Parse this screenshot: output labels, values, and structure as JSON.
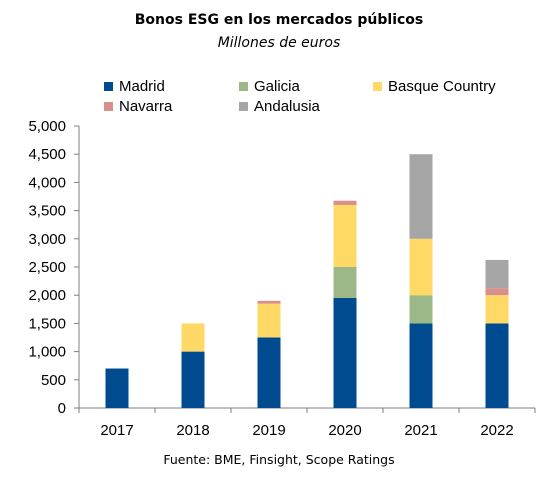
{
  "chart_data": {
    "type": "bar",
    "stacked": true,
    "title": "Bonos ESG en los mercados públicos",
    "subtitle": "Millones de euros",
    "source": "Fuente: BME, Finsight, Scope Ratings",
    "categories": [
      "2017",
      "2018",
      "2019",
      "2020",
      "2021",
      "2022"
    ],
    "ylim": [
      0,
      5000
    ],
    "yticks": [
      "0",
      "500",
      "1,000",
      "1,500",
      "2,000",
      "2,500",
      "3,000",
      "3,500",
      "4,000",
      "4,500",
      "5,000"
    ],
    "ytick_values": [
      0,
      500,
      1000,
      1500,
      2000,
      2500,
      3000,
      3500,
      4000,
      4500,
      5000
    ],
    "grid": false,
    "legend_position": "top",
    "series": [
      {
        "name": "Madrid",
        "color": "#004a8f",
        "values": [
          700,
          1000,
          1250,
          1950,
          1500,
          1500
        ]
      },
      {
        "name": "Galicia",
        "color": "#9cb889",
        "values": [
          0,
          0,
          0,
          550,
          500,
          0
        ]
      },
      {
        "name": "Basque Country",
        "color": "#ffd966",
        "values": [
          0,
          500,
          600,
          1100,
          1000,
          500
        ]
      },
      {
        "name": "Navarra",
        "color": "#d9908a",
        "values": [
          0,
          0,
          50,
          75,
          0,
          125
        ]
      },
      {
        "name": "Andalusia",
        "color": "#a6a6a6",
        "values": [
          0,
          0,
          0,
          0,
          1500,
          500
        ]
      }
    ]
  }
}
